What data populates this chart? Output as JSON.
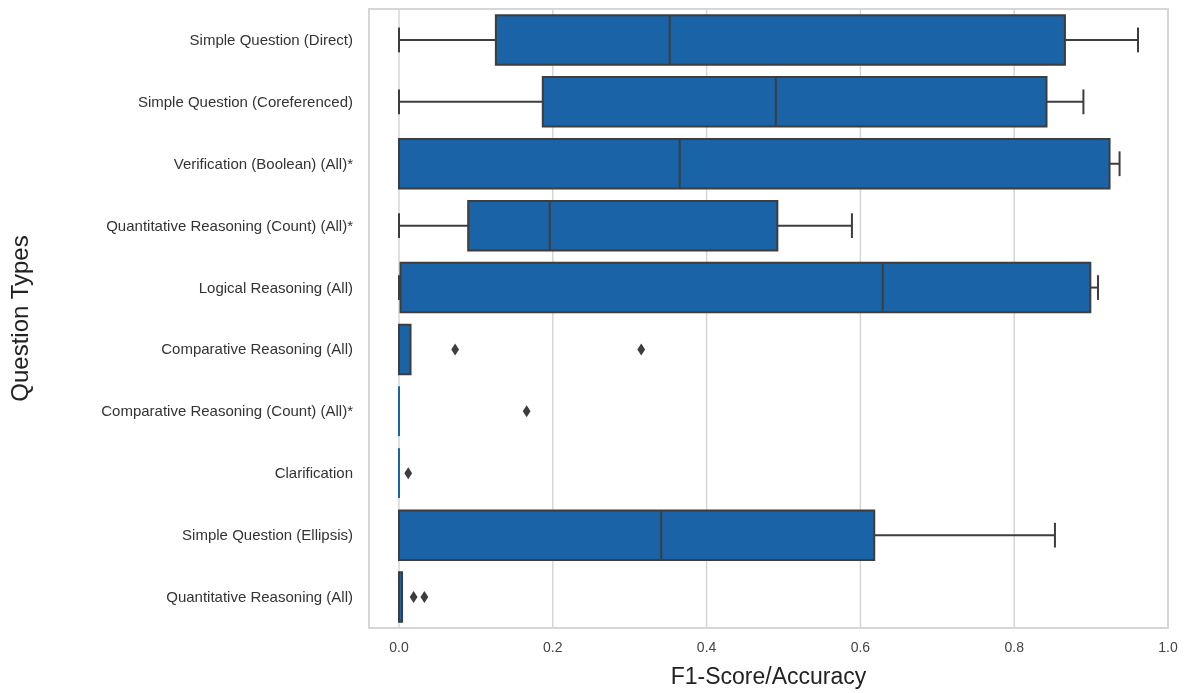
{
  "chart_data": {
    "type": "box",
    "orientation": "horizontal",
    "xlabel": "F1-Score/Accuracy",
    "ylabel": "Question Types",
    "categories": [
      "Simple Question (Direct)",
      "Simple Question (Coreferenced)",
      "Verification (Boolean) (All)*",
      "Quantitative Reasoning (Count) (All)*",
      "Logical Reasoning (All)",
      "Comparative Reasoning (All)",
      "Comparative Reasoning (Count) (All)*",
      "Clarification",
      "Simple Question (Ellipsis)",
      "Quantitative Reasoning (All)"
    ],
    "color": "#1a63a6",
    "marker": "diamond",
    "grid": "x",
    "xlim": [
      -0.039,
      1.0
    ],
    "xticks": [
      {
        "value": 0,
        "label": "0.0"
      },
      0.2,
      0.4,
      0.6,
      0.8,
      {
        "value": 1,
        "label": "1.0"
      }
    ],
    "boxes": [
      {
        "low": 0,
        "q1": 0.126,
        "median": 0.352,
        "q3": 0.866,
        "high": 0.961
      },
      {
        "low": 0,
        "q1": 0.187,
        "median": 0.49,
        "q3": 0.842,
        "high": 0.89
      },
      {
        "low": 0,
        "q1": 0,
        "median": 0.365,
        "q3": 0.924,
        "high": 0.937
      },
      {
        "low": 0,
        "q1": 0.09,
        "median": 0.196,
        "q3": 0.492,
        "high": 0.589
      },
      {
        "low": 0,
        "q1": 0.002,
        "median": 0.629,
        "q3": 0.899,
        "high": 0.909
      },
      {
        "low": 0,
        "q1": 0,
        "median": 0,
        "q3": 0.015,
        "high": 0.015,
        "outliers": [
          0.073,
          0.315
        ]
      },
      {
        "low": 0,
        "q1": 0,
        "median": 0,
        "q3": 0,
        "high": 0,
        "outliers": [
          0.166
        ]
      },
      {
        "low": 0,
        "q1": 0,
        "median": 0,
        "q3": 0,
        "high": 0,
        "outliers": [
          0.012
        ]
      },
      {
        "low": 0,
        "q1": 0,
        "median": 0.341,
        "q3": 0.618,
        "high": 0.853
      },
      {
        "low": 0,
        "q1": 0,
        "median": 0,
        "q3": 0.004,
        "high": 0.004,
        "outliers": [
          0.019,
          0.033
        ]
      }
    ]
  }
}
